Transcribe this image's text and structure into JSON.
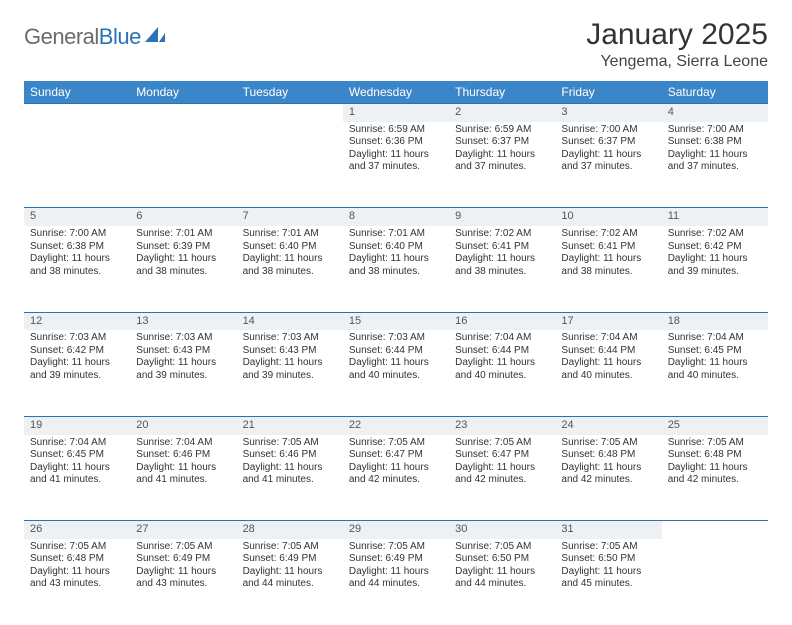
{
  "brand": {
    "word1": "General",
    "word2": "Blue"
  },
  "colors": {
    "header_bg": "#3b86c8",
    "border_top": "#2a72b5",
    "daynum_bg": "#eef1f4",
    "text": "#333333",
    "logo_gray": "#6b6b6b",
    "logo_blue": "#2a72b5"
  },
  "title": "January 2025",
  "location": "Yengema, Sierra Leone",
  "weekdays": [
    "Sunday",
    "Monday",
    "Tuesday",
    "Wednesday",
    "Thursday",
    "Friday",
    "Saturday"
  ],
  "weeks": [
    {
      "nums": [
        "",
        "",
        "",
        "1",
        "2",
        "3",
        "4"
      ],
      "cells": [
        null,
        null,
        null,
        {
          "sunrise": "6:59 AM",
          "sunset": "6:36 PM",
          "daylight": "11 hours and 37 minutes."
        },
        {
          "sunrise": "6:59 AM",
          "sunset": "6:37 PM",
          "daylight": "11 hours and 37 minutes."
        },
        {
          "sunrise": "7:00 AM",
          "sunset": "6:37 PM",
          "daylight": "11 hours and 37 minutes."
        },
        {
          "sunrise": "7:00 AM",
          "sunset": "6:38 PM",
          "daylight": "11 hours and 37 minutes."
        }
      ]
    },
    {
      "nums": [
        "5",
        "6",
        "7",
        "8",
        "9",
        "10",
        "11"
      ],
      "cells": [
        {
          "sunrise": "7:00 AM",
          "sunset": "6:38 PM",
          "daylight": "11 hours and 38 minutes."
        },
        {
          "sunrise": "7:01 AM",
          "sunset": "6:39 PM",
          "daylight": "11 hours and 38 minutes."
        },
        {
          "sunrise": "7:01 AM",
          "sunset": "6:40 PM",
          "daylight": "11 hours and 38 minutes."
        },
        {
          "sunrise": "7:01 AM",
          "sunset": "6:40 PM",
          "daylight": "11 hours and 38 minutes."
        },
        {
          "sunrise": "7:02 AM",
          "sunset": "6:41 PM",
          "daylight": "11 hours and 38 minutes."
        },
        {
          "sunrise": "7:02 AM",
          "sunset": "6:41 PM",
          "daylight": "11 hours and 38 minutes."
        },
        {
          "sunrise": "7:02 AM",
          "sunset": "6:42 PM",
          "daylight": "11 hours and 39 minutes."
        }
      ]
    },
    {
      "nums": [
        "12",
        "13",
        "14",
        "15",
        "16",
        "17",
        "18"
      ],
      "cells": [
        {
          "sunrise": "7:03 AM",
          "sunset": "6:42 PM",
          "daylight": "11 hours and 39 minutes."
        },
        {
          "sunrise": "7:03 AM",
          "sunset": "6:43 PM",
          "daylight": "11 hours and 39 minutes."
        },
        {
          "sunrise": "7:03 AM",
          "sunset": "6:43 PM",
          "daylight": "11 hours and 39 minutes."
        },
        {
          "sunrise": "7:03 AM",
          "sunset": "6:44 PM",
          "daylight": "11 hours and 40 minutes."
        },
        {
          "sunrise": "7:04 AM",
          "sunset": "6:44 PM",
          "daylight": "11 hours and 40 minutes."
        },
        {
          "sunrise": "7:04 AM",
          "sunset": "6:44 PM",
          "daylight": "11 hours and 40 minutes."
        },
        {
          "sunrise": "7:04 AM",
          "sunset": "6:45 PM",
          "daylight": "11 hours and 40 minutes."
        }
      ]
    },
    {
      "nums": [
        "19",
        "20",
        "21",
        "22",
        "23",
        "24",
        "25"
      ],
      "cells": [
        {
          "sunrise": "7:04 AM",
          "sunset": "6:45 PM",
          "daylight": "11 hours and 41 minutes."
        },
        {
          "sunrise": "7:04 AM",
          "sunset": "6:46 PM",
          "daylight": "11 hours and 41 minutes."
        },
        {
          "sunrise": "7:05 AM",
          "sunset": "6:46 PM",
          "daylight": "11 hours and 41 minutes."
        },
        {
          "sunrise": "7:05 AM",
          "sunset": "6:47 PM",
          "daylight": "11 hours and 42 minutes."
        },
        {
          "sunrise": "7:05 AM",
          "sunset": "6:47 PM",
          "daylight": "11 hours and 42 minutes."
        },
        {
          "sunrise": "7:05 AM",
          "sunset": "6:48 PM",
          "daylight": "11 hours and 42 minutes."
        },
        {
          "sunrise": "7:05 AM",
          "sunset": "6:48 PM",
          "daylight": "11 hours and 42 minutes."
        }
      ]
    },
    {
      "nums": [
        "26",
        "27",
        "28",
        "29",
        "30",
        "31",
        ""
      ],
      "cells": [
        {
          "sunrise": "7:05 AM",
          "sunset": "6:48 PM",
          "daylight": "11 hours and 43 minutes."
        },
        {
          "sunrise": "7:05 AM",
          "sunset": "6:49 PM",
          "daylight": "11 hours and 43 minutes."
        },
        {
          "sunrise": "7:05 AM",
          "sunset": "6:49 PM",
          "daylight": "11 hours and 44 minutes."
        },
        {
          "sunrise": "7:05 AM",
          "sunset": "6:49 PM",
          "daylight": "11 hours and 44 minutes."
        },
        {
          "sunrise": "7:05 AM",
          "sunset": "6:50 PM",
          "daylight": "11 hours and 44 minutes."
        },
        {
          "sunrise": "7:05 AM",
          "sunset": "6:50 PM",
          "daylight": "11 hours and 45 minutes."
        },
        null
      ]
    }
  ],
  "labels": {
    "sunrise": "Sunrise:",
    "sunset": "Sunset:",
    "daylight": "Daylight:"
  }
}
